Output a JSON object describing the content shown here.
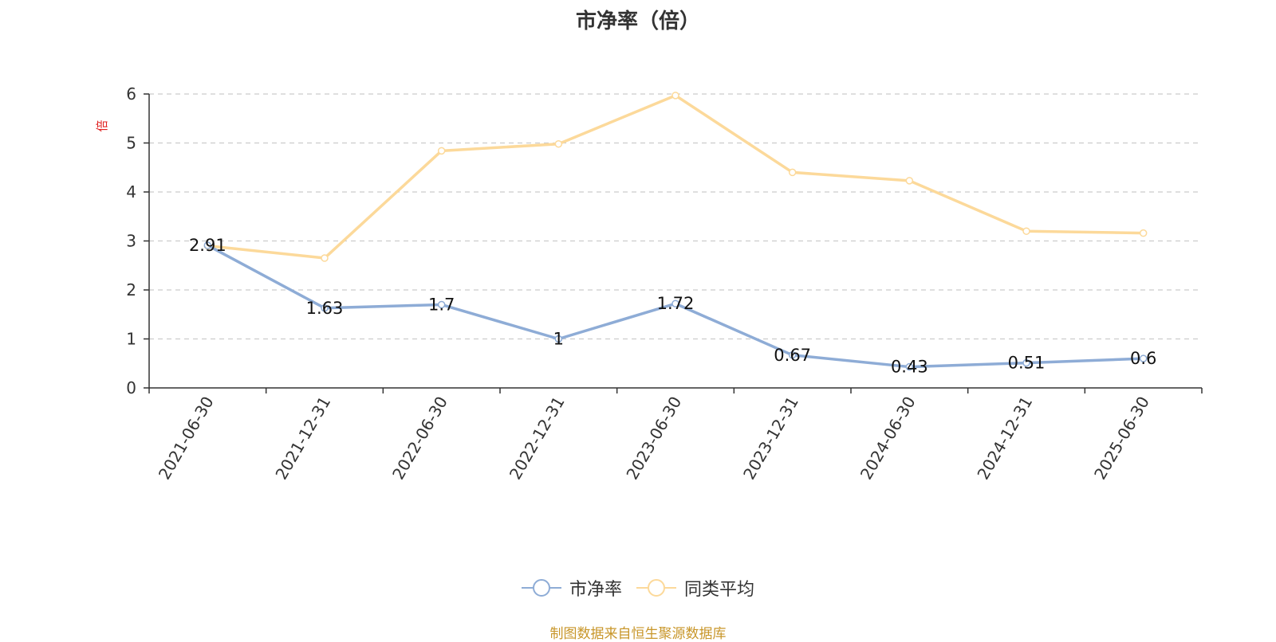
{
  "chart_data": {
    "type": "line",
    "title": "市净率（倍）",
    "ylabel": "倍",
    "xlabel": "",
    "categories": [
      "2021-06-30",
      "2021-12-31",
      "2022-06-30",
      "2022-12-31",
      "2023-06-30",
      "2023-12-31",
      "2024-06-30",
      "2024-12-31",
      "2025-06-30"
    ],
    "ylim": [
      0,
      6
    ],
    "yticks": [
      0,
      1,
      2,
      3,
      4,
      5,
      6
    ],
    "grid": true,
    "legend_position": "bottom",
    "series": [
      {
        "name": "市净率",
        "color": "#8eacd6",
        "values": [
          2.91,
          1.63,
          1.7,
          1.0,
          1.72,
          0.67,
          0.43,
          0.51,
          0.6
        ],
        "labels": [
          "2.91",
          "1.63",
          "1.7",
          "1",
          "1.72",
          "0.67",
          "0.43",
          "0.51",
          "0.6"
        ]
      },
      {
        "name": "同类平均",
        "color": "#fcd99a",
        "values": [
          2.9,
          2.65,
          4.84,
          4.98,
          5.97,
          4.4,
          4.23,
          3.2,
          3.16
        ]
      }
    ]
  },
  "source_note": "制图数据来自恒生聚源数据库"
}
